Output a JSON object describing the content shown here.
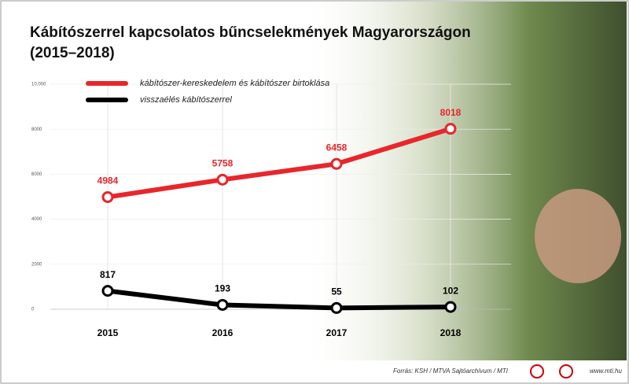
{
  "chart_data": {
    "type": "line",
    "title": "Kábítószerrel kapcsolatos bűncselekmények Magyarországon",
    "subtitle": "(2015–2018)",
    "categories": [
      "2015",
      "2016",
      "2017",
      "2018"
    ],
    "series": [
      {
        "name": "kábítószer-kereskedelem és kábítószer birtoklása",
        "color": "#e8262b",
        "values": [
          4984,
          5758,
          6458,
          8018
        ]
      },
      {
        "name": "visszaélés kábítószerrel",
        "color": "#000000",
        "values": [
          817,
          193,
          55,
          102
        ]
      }
    ],
    "ylim": [
      0,
      10000
    ],
    "yticks": [
      0,
      2000,
      4000,
      6000,
      8000,
      {
        "value": 10000,
        "label": "10.000"
      }
    ],
    "grid": true,
    "source": "Forrás: KSH / MTVA Sajtóarchívum / MTI",
    "site": "www.mti.hu"
  }
}
